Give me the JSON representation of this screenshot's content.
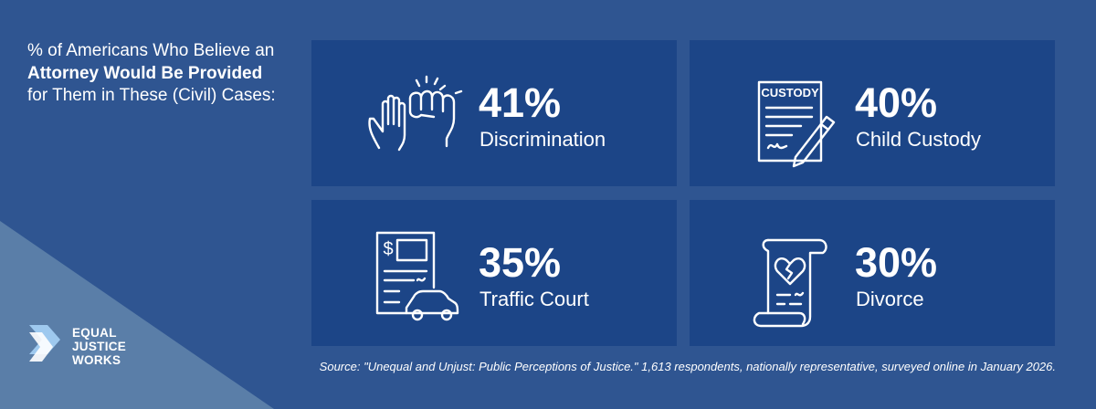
{
  "header": {
    "title_parts": [
      "% of Americans Who Believe an ",
      "Attorney Would Be Provided",
      " for Them in These (Civil) Cases:"
    ]
  },
  "cards": [
    {
      "value": "41%",
      "label": "Discrimination"
    },
    {
      "value": "40%",
      "label": "Child Custody",
      "icon_text": "CUSTODY"
    },
    {
      "value": "35%",
      "label": "Traffic Court",
      "icon_text": "$"
    },
    {
      "value": "30%",
      "label": "Divorce"
    }
  ],
  "logo": {
    "lines": [
      "EQUAL",
      "JUSTICE",
      "WORKS"
    ]
  },
  "source": "Source: \"Unequal and Unjust: Public Perceptions of Justice.\" 1,613 respondents, nationally representative, surveyed online in January 2026."
}
